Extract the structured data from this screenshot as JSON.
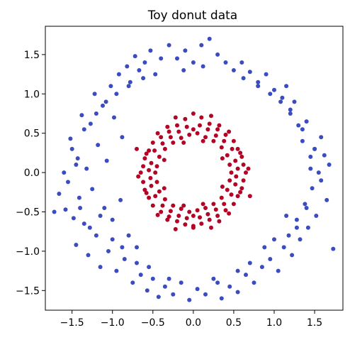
{
  "chart_data": {
    "type": "scatter",
    "title": "Toy donut data",
    "xlabel": "",
    "ylabel": "",
    "xlim": [
      -1.83,
      1.85
    ],
    "ylim": [
      -1.75,
      1.86
    ],
    "x_ticks": [
      -1.5,
      -1.0,
      -0.5,
      0.0,
      0.5,
      1.0,
      1.5
    ],
    "x_tick_labels": [
      "−1.5",
      "−1.0",
      "−0.5",
      "0.0",
      "0.5",
      "1.0",
      "1.5"
    ],
    "y_ticks": [
      -1.5,
      -1.0,
      -0.5,
      0.0,
      0.5,
      1.0,
      1.5
    ],
    "y_tick_labels": [
      "−1.5",
      "−1.0",
      "−0.5",
      "0.0",
      "0.5",
      "1.0",
      "1.5"
    ],
    "grid": false,
    "legend": "none",
    "series": [
      {
        "color": "#3b4cc0",
        "points": [
          [
            1.73,
            -0.97
          ],
          [
            -1.72,
            -0.5
          ],
          [
            -1.66,
            -0.27
          ],
          [
            -1.58,
            -0.47
          ],
          [
            -1.55,
            -0.12
          ],
          [
            -1.52,
            0.43
          ],
          [
            -1.48,
            -0.58
          ],
          [
            -1.45,
            -0.92
          ],
          [
            -1.43,
            0.18
          ],
          [
            -1.41,
            -0.32
          ],
          [
            -1.38,
            0.73
          ],
          [
            -1.35,
            -0.65
          ],
          [
            -1.32,
            0.05
          ],
          [
            -1.3,
            -1.05
          ],
          [
            -1.27,
            0.62
          ],
          [
            -1.25,
            -0.21
          ],
          [
            -1.22,
            1.0
          ],
          [
            -1.2,
            -0.8
          ],
          [
            -1.18,
            0.35
          ],
          [
            -1.15,
            -1.2
          ],
          [
            -1.12,
            0.85
          ],
          [
            -1.1,
            -0.45
          ],
          [
            -1.07,
            0.15
          ],
          [
            -1.05,
            -1.0
          ],
          [
            -1.02,
            1.1
          ],
          [
            -1.0,
            -0.6
          ],
          [
            -0.98,
            0.7
          ],
          [
            -0.95,
            -1.25
          ],
          [
            -0.92,
            1.25
          ],
          [
            -0.9,
            -0.35
          ],
          [
            -0.88,
            0.45
          ],
          [
            -0.85,
            -1.1
          ],
          [
            -0.82,
            1.35
          ],
          [
            -0.8,
            -0.8
          ],
          [
            -0.78,
            1.15
          ],
          [
            -0.75,
            -1.4
          ],
          [
            -0.72,
            1.48
          ],
          [
            -0.7,
            -0.95
          ],
          [
            -0.67,
            1.3
          ],
          [
            -0.65,
            -1.3
          ],
          [
            -0.6,
            1.4
          ],
          [
            -0.57,
            -1.5
          ],
          [
            -0.53,
            1.55
          ],
          [
            -0.5,
            -1.35
          ],
          [
            -0.47,
            1.25
          ],
          [
            -0.43,
            -1.58
          ],
          [
            -0.4,
            1.45
          ],
          [
            -0.35,
            -1.45
          ],
          [
            -0.3,
            1.62
          ],
          [
            -0.25,
            -1.55
          ],
          [
            -0.2,
            1.45
          ],
          [
            -0.15,
            -1.4
          ],
          [
            -0.1,
            1.55
          ],
          [
            -0.05,
            -1.62
          ],
          [
            0.0,
            1.4
          ],
          [
            0.05,
            -1.48
          ],
          [
            0.1,
            1.62
          ],
          [
            0.15,
            -1.55
          ],
          [
            0.2,
            1.7
          ],
          [
            0.25,
            -1.35
          ],
          [
            0.3,
            1.5
          ],
          [
            0.35,
            -1.6
          ],
          [
            0.4,
            1.4
          ],
          [
            0.45,
            -1.45
          ],
          [
            0.5,
            1.3
          ],
          [
            0.55,
            -1.52
          ],
          [
            0.6,
            1.4
          ],
          [
            0.65,
            -1.3
          ],
          [
            0.7,
            1.28
          ],
          [
            0.75,
            -1.4
          ],
          [
            0.8,
            1.15
          ],
          [
            0.85,
            -1.2
          ],
          [
            0.9,
            1.25
          ],
          [
            0.95,
            -1.1
          ],
          [
            1.0,
            1.05
          ],
          [
            1.05,
            -1.25
          ],
          [
            1.1,
            0.95
          ],
          [
            1.12,
            -0.95
          ],
          [
            1.15,
            1.1
          ],
          [
            1.18,
            -0.8
          ],
          [
            1.2,
            0.8
          ],
          [
            1.22,
            -1.05
          ],
          [
            1.25,
            0.9
          ],
          [
            1.28,
            -0.6
          ],
          [
            1.3,
            0.6
          ],
          [
            1.32,
            -0.85
          ],
          [
            1.35,
            0.4
          ],
          [
            1.38,
            -0.4
          ],
          [
            1.4,
            0.65
          ],
          [
            1.42,
            -0.7
          ],
          [
            1.45,
            0.2
          ],
          [
            1.47,
            -0.2
          ],
          [
            1.5,
            0.3
          ],
          [
            1.52,
            -0.55
          ],
          [
            1.55,
            0.0
          ],
          [
            1.58,
            -0.1
          ],
          [
            1.62,
            0.22
          ],
          [
            1.65,
            -0.35
          ],
          [
            1.68,
            0.1
          ],
          [
            -1.6,
            0.0
          ],
          [
            -1.5,
            0.3
          ],
          [
            -1.4,
            -0.45
          ],
          [
            -1.35,
            0.55
          ],
          [
            -1.28,
            -0.7
          ],
          [
            -1.2,
            0.75
          ],
          [
            -1.15,
            -0.55
          ],
          [
            -1.08,
            0.9
          ],
          [
            -1.0,
            -0.85
          ],
          [
            -0.95,
            1.0
          ],
          [
            -0.88,
            -0.95
          ],
          [
            -0.8,
            1.1
          ],
          [
            -0.7,
            -1.15
          ],
          [
            -0.62,
            1.2
          ],
          [
            -0.55,
            -1.2
          ],
          [
            0.55,
            -1.25
          ],
          [
            0.62,
            1.2
          ],
          [
            0.7,
            -1.15
          ],
          [
            0.8,
            1.1
          ],
          [
            0.88,
            -0.95
          ],
          [
            0.95,
            1.0
          ],
          [
            1.0,
            -0.85
          ],
          [
            1.08,
            0.9
          ],
          [
            1.15,
            -0.55
          ],
          [
            1.2,
            0.75
          ],
          [
            1.28,
            -0.7
          ],
          [
            1.35,
            0.55
          ],
          [
            1.4,
            -0.45
          ],
          [
            1.5,
            0.3
          ],
          [
            1.58,
            0.45
          ],
          [
            -0.3,
            -1.35
          ],
          [
            0.3,
            -1.4
          ],
          [
            -0.12,
            1.3
          ],
          [
            0.12,
            1.35
          ],
          [
            -1.45,
            0.1
          ],
          [
            1.45,
            0.05
          ]
        ]
      },
      {
        "color": "#b40426",
        "points": [
          [
            0.0,
            0.75
          ],
          [
            0.1,
            0.7
          ],
          [
            -0.1,
            0.68
          ],
          [
            0.2,
            0.62
          ],
          [
            -0.2,
            0.6
          ],
          [
            0.3,
            0.55
          ],
          [
            -0.3,
            0.52
          ],
          [
            0.4,
            0.48
          ],
          [
            -0.4,
            0.45
          ],
          [
            0.5,
            0.4
          ],
          [
            -0.5,
            0.38
          ],
          [
            0.55,
            0.3
          ],
          [
            -0.55,
            0.28
          ],
          [
            0.6,
            0.2
          ],
          [
            -0.6,
            0.18
          ],
          [
            0.62,
            0.1
          ],
          [
            -0.62,
            0.08
          ],
          [
            0.65,
            0.0
          ],
          [
            -0.65,
            0.0
          ],
          [
            0.62,
            -0.1
          ],
          [
            -0.62,
            -0.12
          ],
          [
            0.6,
            -0.2
          ],
          [
            -0.6,
            -0.22
          ],
          [
            0.55,
            -0.3
          ],
          [
            -0.55,
            -0.32
          ],
          [
            0.5,
            -0.4
          ],
          [
            -0.5,
            -0.42
          ],
          [
            0.4,
            -0.48
          ],
          [
            -0.4,
            -0.5
          ],
          [
            0.3,
            -0.55
          ],
          [
            -0.3,
            -0.56
          ],
          [
            0.2,
            -0.6
          ],
          [
            -0.2,
            -0.62
          ],
          [
            0.1,
            -0.65
          ],
          [
            -0.1,
            -0.66
          ],
          [
            0.0,
            -0.68
          ],
          [
            0.0,
            -0.7
          ],
          [
            0.05,
            0.5
          ],
          [
            -0.05,
            0.48
          ],
          [
            0.15,
            0.45
          ],
          [
            -0.15,
            0.44
          ],
          [
            0.25,
            0.4
          ],
          [
            -0.25,
            0.38
          ],
          [
            0.35,
            0.32
          ],
          [
            -0.35,
            0.3
          ],
          [
            0.42,
            0.22
          ],
          [
            -0.42,
            0.2
          ],
          [
            0.45,
            0.1
          ],
          [
            -0.45,
            0.08
          ],
          [
            0.47,
            0.0
          ],
          [
            -0.47,
            0.0
          ],
          [
            0.45,
            -0.1
          ],
          [
            -0.45,
            -0.12
          ],
          [
            0.42,
            -0.22
          ],
          [
            -0.42,
            -0.24
          ],
          [
            0.35,
            -0.32
          ],
          [
            -0.35,
            -0.34
          ],
          [
            0.25,
            -0.4
          ],
          [
            -0.25,
            -0.42
          ],
          [
            0.15,
            -0.45
          ],
          [
            -0.15,
            -0.46
          ],
          [
            0.05,
            -0.48
          ],
          [
            -0.05,
            -0.5
          ],
          [
            0.08,
            0.6
          ],
          [
            -0.08,
            0.58
          ],
          [
            0.18,
            0.55
          ],
          [
            -0.18,
            0.52
          ],
          [
            0.28,
            0.47
          ],
          [
            -0.28,
            0.45
          ],
          [
            0.38,
            0.4
          ],
          [
            -0.38,
            0.37
          ],
          [
            0.48,
            0.3
          ],
          [
            -0.48,
            0.28
          ],
          [
            0.52,
            0.15
          ],
          [
            -0.52,
            0.12
          ],
          [
            0.55,
            0.05
          ],
          [
            -0.55,
            0.03
          ],
          [
            0.53,
            -0.05
          ],
          [
            -0.53,
            -0.07
          ],
          [
            0.52,
            -0.15
          ],
          [
            -0.52,
            -0.17
          ],
          [
            0.47,
            -0.28
          ],
          [
            -0.47,
            -0.3
          ],
          [
            0.38,
            -0.4
          ],
          [
            -0.38,
            -0.42
          ],
          [
            0.28,
            -0.47
          ],
          [
            -0.28,
            -0.49
          ],
          [
            0.18,
            -0.53
          ],
          [
            -0.18,
            -0.55
          ],
          [
            0.08,
            -0.57
          ],
          [
            -0.08,
            -0.58
          ],
          [
            0.58,
            0.25
          ],
          [
            -0.58,
            0.24
          ],
          [
            0.58,
            -0.25
          ],
          [
            -0.58,
            -0.26
          ],
          [
            0.32,
            0.6
          ],
          [
            -0.32,
            0.58
          ],
          [
            0.32,
            -0.62
          ],
          [
            -0.32,
            -0.6
          ],
          [
            0.44,
            0.52
          ],
          [
            -0.44,
            0.5
          ],
          [
            0.44,
            -0.52
          ],
          [
            -0.44,
            -0.54
          ],
          [
            0.12,
            0.4
          ],
          [
            -0.12,
            0.38
          ],
          [
            0.36,
            0.18
          ],
          [
            -0.36,
            0.16
          ],
          [
            0.36,
            -0.18
          ],
          [
            -0.36,
            -0.2
          ],
          [
            0.12,
            -0.4
          ],
          [
            -0.12,
            -0.42
          ],
          [
            0.68,
            0.05
          ],
          [
            -0.68,
            -0.05
          ],
          [
            0.22,
            0.72
          ],
          [
            -0.22,
            0.7
          ],
          [
            0.22,
            -0.7
          ],
          [
            -0.22,
            -0.72
          ],
          [
            0.7,
            -0.3
          ],
          [
            -0.7,
            0.3
          ],
          [
            0.0,
            0.55
          ],
          [
            0.0,
            -0.55
          ]
        ]
      }
    ]
  }
}
